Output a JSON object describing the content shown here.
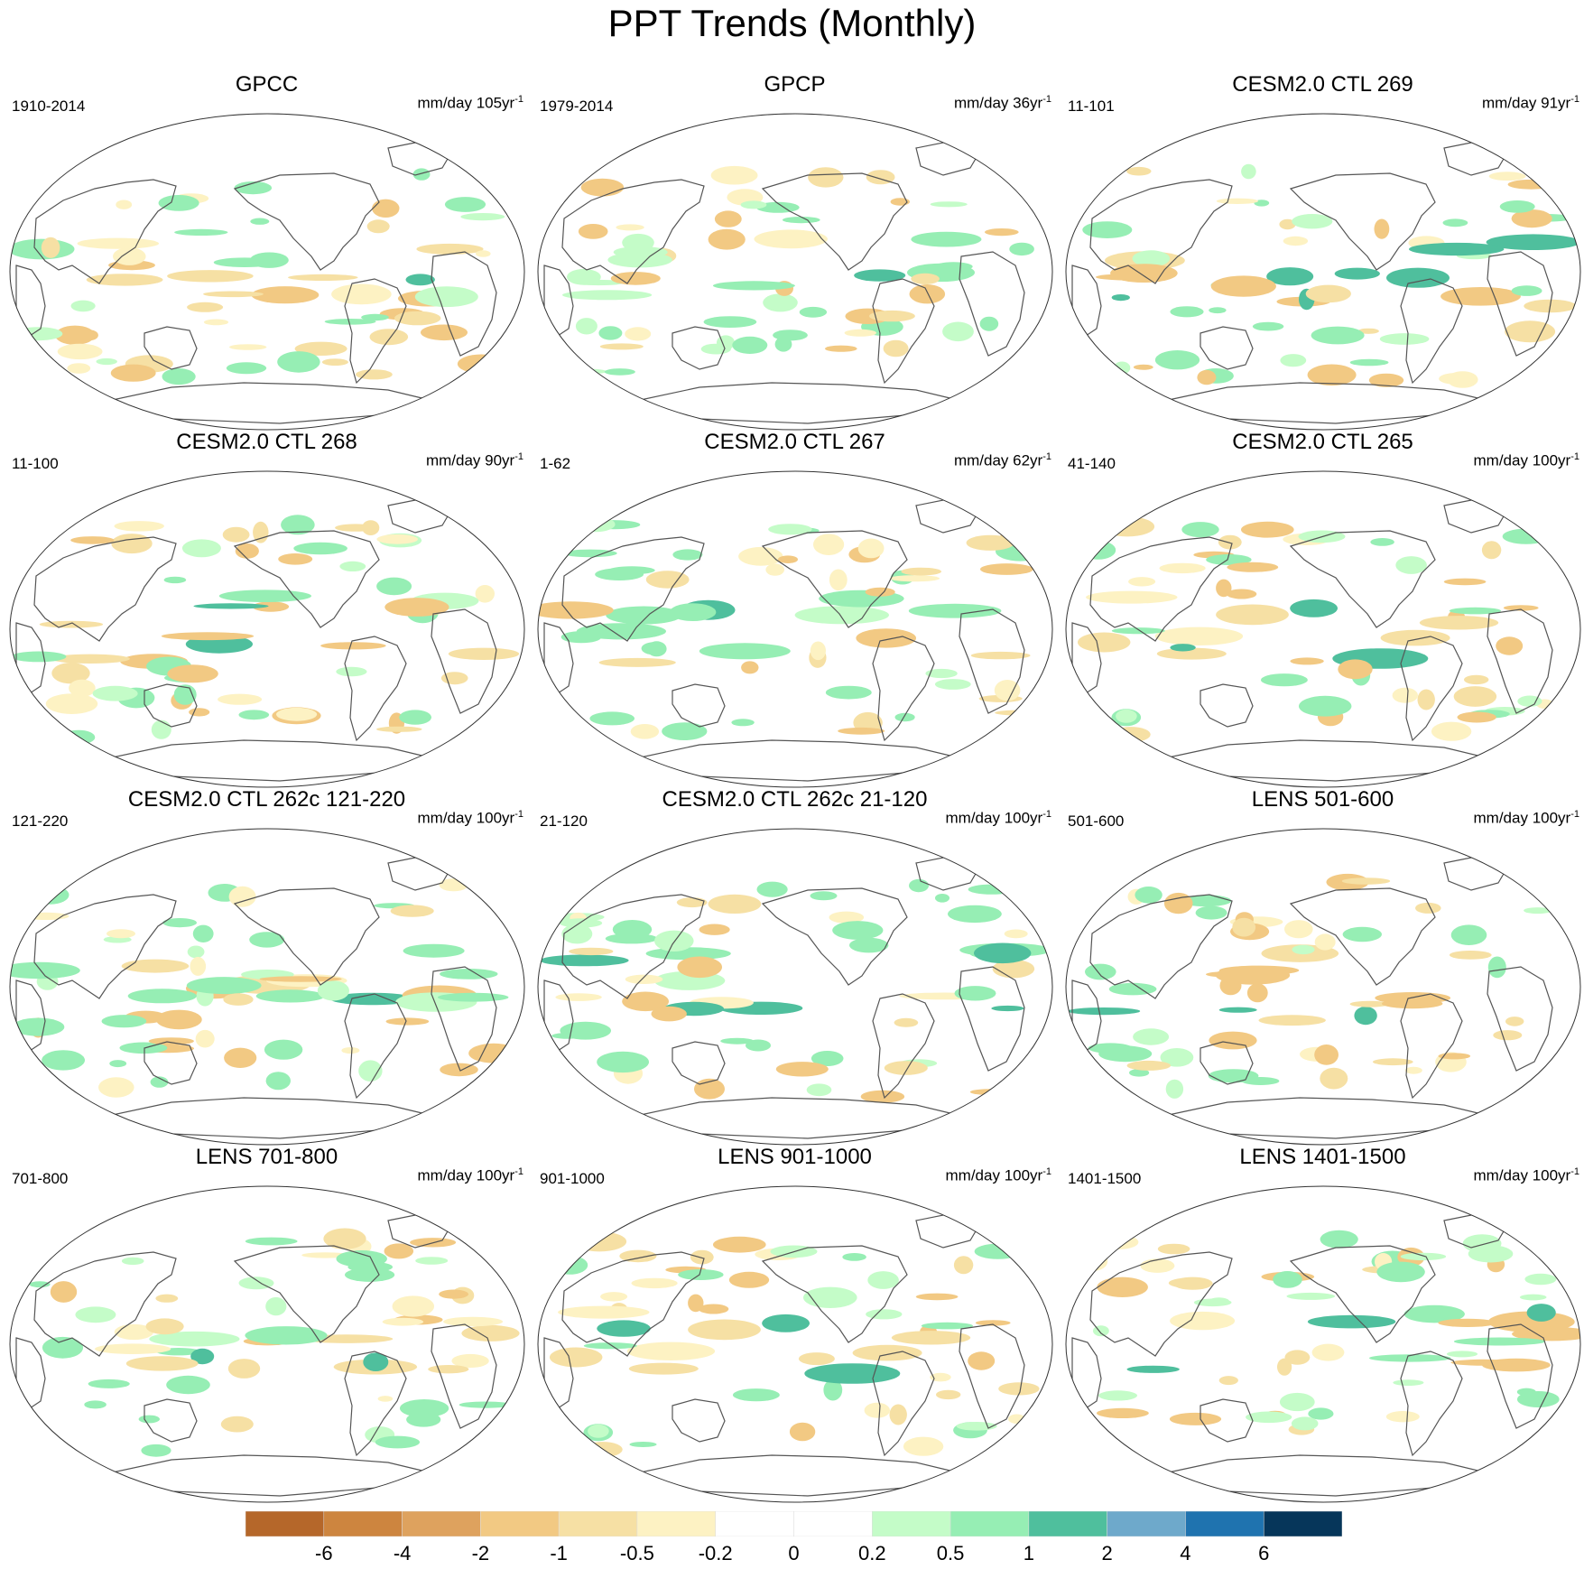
{
  "title": "PPT Trends (Monthly)",
  "panels": [
    {
      "name": "GPCC",
      "period": "1910-2014",
      "units": "mm/day 105yr",
      "units_sup": "-1"
    },
    {
      "name": "GPCP",
      "period": "1979-2014",
      "units": "mm/day 36yr",
      "units_sup": "-1"
    },
    {
      "name": "CESM2.0 CTL 269",
      "period": "11-101",
      "units": "mm/day 91yr",
      "units_sup": "-1"
    },
    {
      "name": "CESM2.0 CTL 268",
      "period": "11-100",
      "units": "mm/day 90yr",
      "units_sup": "-1"
    },
    {
      "name": "CESM2.0 CTL 267",
      "period": "1-62",
      "units": "mm/day 62yr",
      "units_sup": "-1"
    },
    {
      "name": "CESM2.0 CTL 265",
      "period": "41-140",
      "units": "mm/day 100yr",
      "units_sup": "-1"
    },
    {
      "name": "CESM2.0 CTL 262c 121-220",
      "period": "121-220",
      "units": "mm/day 100yr",
      "units_sup": "-1"
    },
    {
      "name": "CESM2.0 CTL 262c 21-120",
      "period": "21-120",
      "units": "mm/day 100yr",
      "units_sup": "-1"
    },
    {
      "name": "LENS 501-600",
      "period": "501-600",
      "units": "mm/day 100yr",
      "units_sup": "-1"
    },
    {
      "name": "LENS 701-800",
      "period": "701-800",
      "units": "mm/day 100yr",
      "units_sup": "-1"
    },
    {
      "name": "LENS 901-1000",
      "period": "901-1000",
      "units": "mm/day 100yr",
      "units_sup": "-1"
    },
    {
      "name": "LENS 1401-1500",
      "period": "1401-1500",
      "units": "mm/day 100yr",
      "units_sup": "-1"
    }
  ],
  "colorbar": {
    "colors": [
      "#b5672a",
      "#cd853f",
      "#dea25e",
      "#f2c983",
      "#f6e0a4",
      "#fdf2c3",
      "#ffffff",
      "#ffffff",
      "#c4fcc8",
      "#96eeb4",
      "#4fbf9d",
      "#6ea9cb",
      "#1f73af",
      "#06365a"
    ],
    "labels": [
      "-6",
      "-4",
      "-2",
      "-1",
      "-0.5",
      "-0.2",
      "0",
      "0.2",
      "0.5",
      "1",
      "2",
      "4",
      "6"
    ]
  }
}
